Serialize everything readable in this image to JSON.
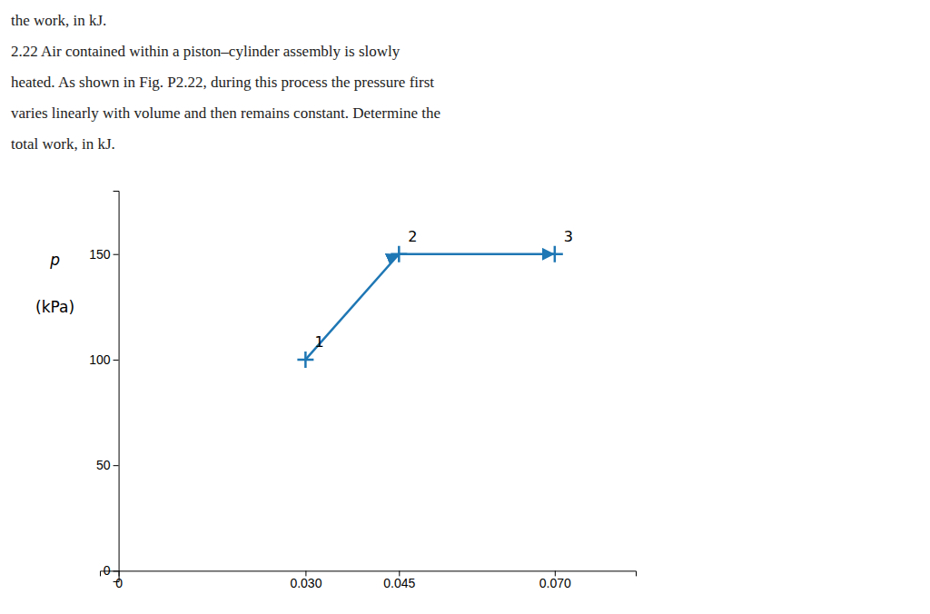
{
  "chart_data": {
    "type": "line",
    "annotations": [
      "the work, in kJ.",
      "2.22  Air contained within a piston–cylinder assembly is slowly",
      "heated. As shown in Fig. P2.22, during this process the pressure first",
      "varies linearly with volume and then remains constant. Determine the",
      "total work, in kJ."
    ],
    "x": [
      0.03,
      0.045,
      0.07
    ],
    "values": [
      100,
      150,
      150
    ],
    "labels": [
      "1",
      "2",
      "3"
    ],
    "marker": "plus",
    "ylabel": [
      "p",
      "(kPa)"
    ],
    "xlim": [
      -0.003,
      0.083
    ],
    "ylim": [
      -5,
      180
    ],
    "xticks": [
      0,
      {
        "value": 0.03,
        "label": "0.030"
      },
      0.045,
      {
        "value": 0.07,
        "label": "0.070"
      }
    ],
    "yticks": [
      0,
      50,
      100,
      150
    ],
    "grid": false
  }
}
